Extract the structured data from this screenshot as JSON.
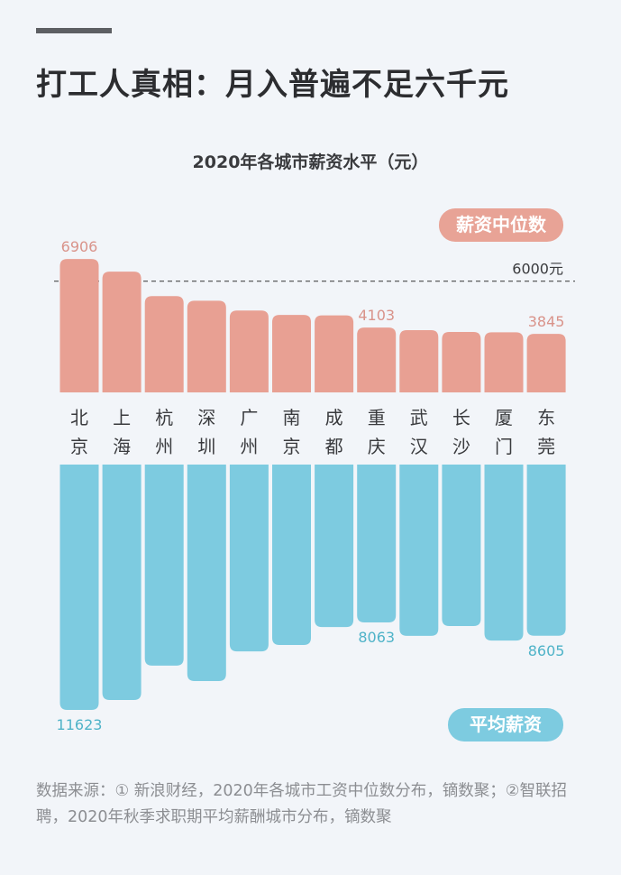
{
  "header": {
    "title": "打工人真相：月入普遍不足六千元",
    "subtitle": "2020年各城市薪资水平（元）"
  },
  "chart_data": {
    "type": "bar",
    "title": "2020年各城市薪资水平（元）",
    "categories": [
      "北京",
      "上海",
      "杭州",
      "深圳",
      "广州",
      "南京",
      "成都",
      "重庆",
      "武汉",
      "长沙",
      "厦门",
      "东莞"
    ],
    "series": [
      {
        "name": "薪资中位数",
        "color": "#e8a093",
        "direction": "up",
        "values": [
          6906,
          6390,
          5390,
          5200,
          4800,
          4620,
          4600,
          4103,
          3996,
          3920,
          3910,
          3845
        ],
        "labeled": [
          0,
          7,
          11
        ],
        "ylim": [
          1450,
          7000
        ]
      },
      {
        "name": "平均薪资",
        "color": "#7dcbe0",
        "direction": "down",
        "values": [
          11623,
          11220,
          9820,
          10450,
          9240,
          8980,
          8250,
          8063,
          8610,
          8210,
          8800,
          8605
        ],
        "labeled": [
          0,
          7,
          11
        ],
        "ylim": [
          1640,
          11700
        ]
      }
    ],
    "reference_line": {
      "value": 6000,
      "label": "6000元",
      "series": "薪资中位数"
    },
    "label_colors": {
      "median": "#d9938a",
      "avg": "#4fb3c8"
    }
  },
  "source": "数据来源：① 新浪财经，2020年各城市工资中位数分布，镝数聚；②智联招聘，2020年秋季求职期平均薪酬城市分布，镝数聚"
}
